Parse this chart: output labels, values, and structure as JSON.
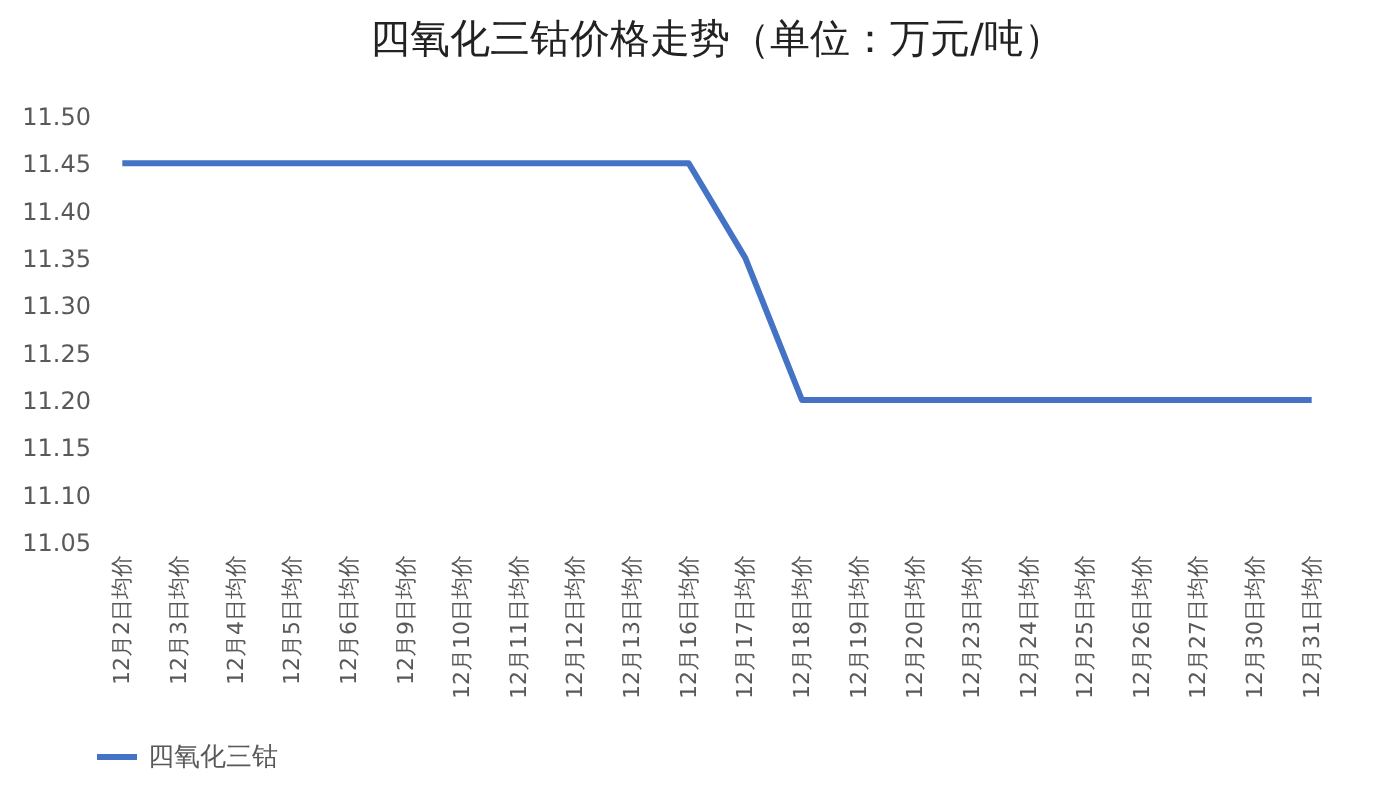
{
  "chart_data": {
    "type": "line",
    "title": "四氧化三钴价格走势（单位：万元/吨）",
    "categories": [
      "12月2日均价",
      "12月3日均价",
      "12月4日均价",
      "12月5日均价",
      "12月6日均价",
      "12月9日均价",
      "12月10日均价",
      "12月11日均价",
      "12月12日均价",
      "12月13日均价",
      "12月16日均价",
      "12月17日均价",
      "12月18日均价",
      "12月19日均价",
      "12月20日均价",
      "12月23日均价",
      "12月24日均价",
      "12月25日均价",
      "12月26日均价",
      "12月27日均价",
      "12月30日均价",
      "12月31日均价"
    ],
    "series": [
      {
        "name": "四氧化三钴",
        "color": "#4472c4",
        "values": [
          11.45,
          11.45,
          11.45,
          11.45,
          11.45,
          11.45,
          11.45,
          11.45,
          11.45,
          11.45,
          11.45,
          11.35,
          11.2,
          11.2,
          11.2,
          11.2,
          11.2,
          11.2,
          11.2,
          11.2,
          11.2,
          11.2
        ]
      }
    ],
    "ylim": [
      11.05,
      11.5
    ],
    "yticks": [
      {
        "value": 11.05,
        "label": "11.05"
      },
      {
        "value": 11.1,
        "label": "11.10"
      },
      {
        "value": 11.15,
        "label": "11.15"
      },
      {
        "value": 11.2,
        "label": "11.20"
      },
      {
        "value": 11.25,
        "label": "11.25"
      },
      {
        "value": 11.3,
        "label": "11.30"
      },
      {
        "value": 11.35,
        "label": "11.35"
      },
      {
        "value": 11.4,
        "label": "11.40"
      },
      {
        "value": 11.45,
        "label": "11.45"
      },
      {
        "value": 11.5,
        "label": "11.50"
      }
    ],
    "grid": false,
    "legend": "bottom",
    "marker": "none",
    "line_style": "solid"
  }
}
